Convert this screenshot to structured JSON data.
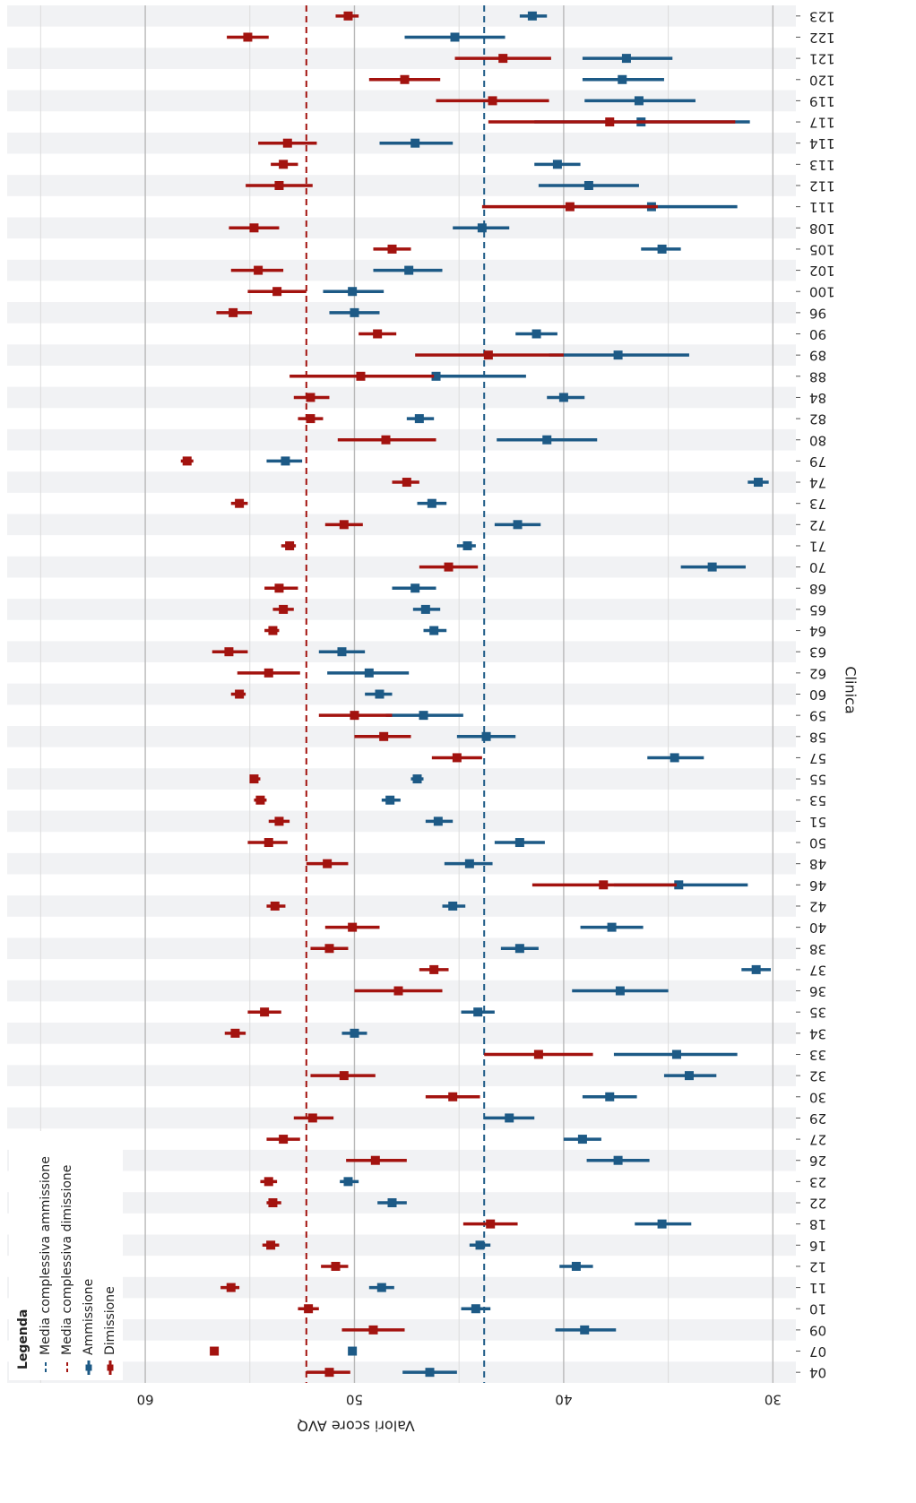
{
  "chart_data": {
    "type": "forest",
    "xlabel": "Valori score AVQ",
    "ylabel": "Clinica",
    "categories": [
      "04",
      "07",
      "09",
      "10",
      "11",
      "12",
      "16",
      "18",
      "22",
      "23",
      "26",
      "27",
      "29",
      "30",
      "32",
      "33",
      "34",
      "35",
      "36",
      "37",
      "38",
      "40",
      "42",
      "46",
      "48",
      "50",
      "51",
      "53",
      "55",
      "57",
      "58",
      "59",
      "60",
      "62",
      "63",
      "64",
      "65",
      "68",
      "70",
      "71",
      "72",
      "73",
      "74",
      "79",
      "80",
      "82",
      "84",
      "88",
      "89",
      "90",
      "96",
      "100",
      "102",
      "105",
      "108",
      "111",
      "112",
      "113",
      "114",
      "117",
      "119",
      "120",
      "121",
      "122",
      "123"
    ],
    "series": [
      {
        "name": "Ammissione",
        "color": "#1d5a86",
        "values": [
          46.4,
          50.1,
          39.0,
          44.2,
          48.7,
          39.4,
          44.0,
          35.3,
          48.2,
          50.3,
          37.4,
          39.1,
          42.6,
          37.8,
          34.0,
          34.6,
          50.0,
          44.1,
          37.3,
          30.8,
          42.1,
          37.7,
          45.3,
          34.5,
          44.5,
          42.1,
          46.0,
          48.3,
          47.0,
          34.7,
          43.7,
          46.7,
          48.8,
          49.3,
          50.6,
          46.2,
          46.6,
          47.1,
          32.9,
          44.6,
          42.2,
          46.3,
          30.7,
          53.3,
          40.8,
          46.9,
          40.0,
          46.1,
          37.4,
          41.3,
          50.0,
          50.1,
          47.4,
          35.3,
          43.9,
          35.8,
          38.8,
          40.3,
          47.1,
          36.3,
          36.4,
          37.2,
          37.0,
          45.2,
          41.5
        ],
        "lower": [
          45.1,
          49.9,
          37.5,
          43.5,
          48.1,
          38.6,
          43.5,
          33.9,
          47.5,
          49.8,
          35.9,
          38.2,
          41.4,
          36.5,
          32.7,
          31.7,
          49.4,
          43.3,
          35.0,
          30.1,
          41.2,
          36.2,
          44.7,
          31.2,
          43.4,
          40.9,
          45.3,
          47.8,
          46.7,
          33.3,
          42.3,
          44.8,
          48.2,
          47.4,
          49.5,
          45.6,
          45.9,
          46.1,
          31.3,
          44.2,
          41.1,
          45.6,
          30.2,
          52.5,
          38.4,
          46.2,
          39.0,
          41.8,
          34.0,
          40.3,
          48.8,
          48.6,
          45.8,
          34.4,
          42.6,
          31.7,
          36.4,
          39.2,
          45.3,
          31.1,
          33.7,
          35.2,
          34.8,
          42.8,
          40.8
        ],
        "upper": [
          47.7,
          50.3,
          40.4,
          44.9,
          49.3,
          40.2,
          44.5,
          36.6,
          48.9,
          50.7,
          38.9,
          40.0,
          43.8,
          39.1,
          35.2,
          37.6,
          50.6,
          44.9,
          39.6,
          31.5,
          43.0,
          39.2,
          45.8,
          37.6,
          45.7,
          43.3,
          46.6,
          48.7,
          47.3,
          36.0,
          45.1,
          48.5,
          49.5,
          51.3,
          51.7,
          46.7,
          47.2,
          48.2,
          34.4,
          45.1,
          43.3,
          47.0,
          31.2,
          54.2,
          43.2,
          47.5,
          40.8,
          50.2,
          40.7,
          42.3,
          51.2,
          51.5,
          49.1,
          36.3,
          45.3,
          39.9,
          41.2,
          41.4,
          48.8,
          41.4,
          39.0,
          39.1,
          39.1,
          47.6,
          42.1
        ]
      },
      {
        "name": "Dimissione",
        "color": "#a3130f",
        "values": [
          51.2,
          56.7,
          49.1,
          52.2,
          55.9,
          50.9,
          54.0,
          43.5,
          53.9,
          54.1,
          49.0,
          53.4,
          52.0,
          45.3,
          50.5,
          41.2,
          55.7,
          54.3,
          47.9,
          46.2,
          51.2,
          50.1,
          53.8,
          38.1,
          51.3,
          54.1,
          53.6,
          54.5,
          54.8,
          45.1,
          48.6,
          50.0,
          55.5,
          54.1,
          56.0,
          53.9,
          53.4,
          53.6,
          45.5,
          53.1,
          50.5,
          55.5,
          47.5,
          58.0,
          48.5,
          52.1,
          52.1,
          49.7,
          43.6,
          48.9,
          55.8,
          53.7,
          54.6,
          48.2,
          54.8,
          39.7,
          53.6,
          53.4,
          53.2,
          37.8,
          43.4,
          47.6,
          42.9,
          55.1,
          50.3
        ],
        "lower": [
          50.2,
          56.6,
          47.6,
          51.7,
          55.5,
          50.3,
          53.6,
          42.2,
          53.5,
          53.7,
          47.5,
          52.6,
          51.0,
          44.0,
          49.0,
          38.6,
          55.2,
          53.5,
          45.8,
          45.5,
          50.3,
          48.8,
          53.3,
          34.6,
          50.3,
          53.2,
          53.1,
          54.2,
          54.5,
          43.9,
          47.3,
          48.2,
          55.2,
          52.6,
          55.1,
          53.6,
          52.9,
          52.7,
          44.1,
          52.8,
          49.6,
          55.1,
          46.9,
          57.7,
          46.1,
          51.5,
          51.2,
          46.2,
          40.0,
          48.0,
          54.9,
          52.3,
          53.4,
          47.3,
          53.6,
          35.5,
          52.0,
          52.7,
          51.8,
          31.8,
          40.7,
          45.9,
          40.6,
          54.1,
          49.8
        ],
        "upper": [
          52.3,
          56.8,
          50.6,
          52.7,
          56.4,
          51.6,
          54.4,
          44.8,
          54.2,
          54.5,
          50.4,
          54.2,
          52.9,
          46.6,
          52.1,
          43.8,
          56.2,
          55.1,
          50.0,
          46.9,
          52.1,
          51.4,
          54.2,
          41.5,
          52.3,
          55.1,
          54.1,
          54.8,
          55.0,
          46.3,
          50.0,
          51.7,
          55.9,
          55.6,
          56.8,
          54.3,
          53.9,
          54.3,
          46.9,
          53.5,
          51.4,
          55.9,
          48.2,
          58.3,
          50.8,
          52.7,
          52.9,
          53.1,
          47.1,
          49.8,
          56.6,
          55.1,
          55.9,
          49.1,
          56.0,
          43.9,
          55.2,
          54.0,
          54.6,
          43.6,
          46.1,
          49.3,
          45.2,
          56.1,
          50.9
        ]
      }
    ],
    "reference_lines": [
      {
        "name": "Media complessiva ammissione",
        "value": 43.8,
        "color": "#1d5a86"
      },
      {
        "name": "Media complessiva dimissione",
        "value": 52.3,
        "color": "#a3130f"
      }
    ],
    "xlim": [
      28.9,
      66.6
    ],
    "xticks": [
      30,
      40,
      50,
      60
    ],
    "minor_xticks": [
      35,
      45,
      55,
      65
    ],
    "grid": true,
    "legend_title": "Legenda",
    "legend_position": "bottom-left"
  }
}
